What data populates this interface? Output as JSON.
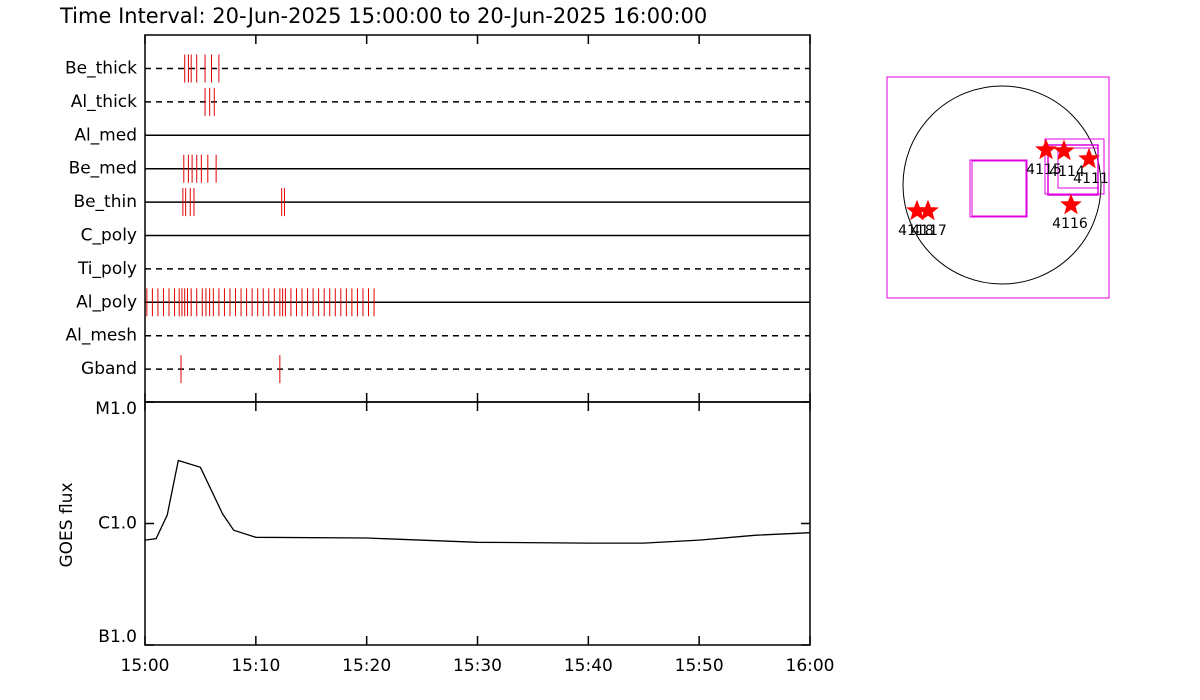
{
  "title": "Time Interval: 20-Jun-2025 15:00:00 to 20-Jun-2025 16:00:00",
  "chart_data": [
    {
      "type": "timeline",
      "color": "#e00000",
      "xlim": [
        "15:00",
        "16:00"
      ],
      "rows": [
        {
          "name": "Be_thick",
          "style": "dashed",
          "times": [
            "15:03:35",
            "15:03:55",
            "15:04:10",
            "15:04:40",
            "15:05:25",
            "15:06:00",
            "15:06:40"
          ]
        },
        {
          "name": "Al_thick",
          "style": "dashed",
          "times": [
            "15:05:25",
            "15:05:50",
            "15:06:15"
          ]
        },
        {
          "name": "Al_med",
          "style": "solid",
          "times": []
        },
        {
          "name": "Be_med",
          "style": "solid",
          "times": [
            "15:03:30",
            "15:03:55",
            "15:04:15",
            "15:04:40",
            "15:05:05",
            "15:05:40",
            "15:06:25"
          ]
        },
        {
          "name": "Be_thin",
          "style": "solid",
          "times": [
            "15:03:25",
            "15:03:40",
            "15:04:05",
            "15:04:25",
            "15:12:20",
            "15:12:35"
          ]
        },
        {
          "name": "C_poly",
          "style": "solid",
          "times": []
        },
        {
          "name": "Ti_poly",
          "style": "dashed",
          "times": []
        },
        {
          "name": "Al_poly",
          "style": "solid",
          "times": [
            "15:00:10",
            "15:00:40",
            "15:01:10",
            "15:01:40",
            "15:02:10",
            "15:02:40",
            "15:03:05",
            "15:03:20",
            "15:03:35",
            "15:03:50",
            "15:04:10",
            "15:04:40",
            "15:05:10",
            "15:05:30",
            "15:05:50",
            "15:06:10",
            "15:06:40",
            "15:07:10",
            "15:07:40",
            "15:08:10",
            "15:08:40",
            "15:09:10",
            "15:09:40",
            "15:10:10",
            "15:10:40",
            "15:11:10",
            "15:11:40",
            "15:12:10",
            "15:12:25",
            "15:12:40",
            "15:13:10",
            "15:13:40",
            "15:14:10",
            "15:14:40",
            "15:15:10",
            "15:15:40",
            "15:16:10",
            "15:16:40",
            "15:17:10",
            "15:17:40",
            "15:18:10",
            "15:18:40",
            "15:19:10",
            "15:19:40",
            "15:20:10",
            "15:20:40"
          ]
        },
        {
          "name": "Al_mesh",
          "style": "dashed",
          "times": []
        },
        {
          "name": "Gband",
          "style": "dashed",
          "times": [
            "15:03:15",
            "15:12:10"
          ]
        }
      ]
    },
    {
      "type": "line",
      "ylabel": "GOES flux",
      "color": "#000000",
      "log": true,
      "x": [
        "15:00",
        "15:01",
        "15:02",
        "15:03",
        "15:05",
        "15:07",
        "15:08",
        "15:10",
        "15:20",
        "15:30",
        "15:40",
        "15:45",
        "15:50",
        "15:55",
        "16:00"
      ],
      "values": [
        7.3e-07,
        7.5e-07,
        1.17e-06,
        3.3e-06,
        2.9e-06,
        1.2e-06,
        8.8e-07,
        7.7e-07,
        7.6e-07,
        7e-07,
        6.9e-07,
        6.9e-07,
        7.3e-07,
        8e-07,
        8.4e-07
      ],
      "xlim": [
        "15:00",
        "16:00"
      ],
      "xticks": [
        "15:00",
        "15:10",
        "15:20",
        "15:30",
        "15:40",
        "15:50",
        "16:00"
      ],
      "ylim": [
        1e-07,
        1e-05
      ],
      "yticks": [
        {
          "value": 1e-05,
          "label": "M1.0"
        },
        {
          "value": 1e-06,
          "label": "C1.0"
        },
        {
          "value": 1e-07,
          "label": "B1.0"
        }
      ]
    }
  ],
  "map": {
    "labels": [
      "4118",
      "4117",
      "4115",
      "4114",
      "4111",
      "4116"
    ]
  }
}
